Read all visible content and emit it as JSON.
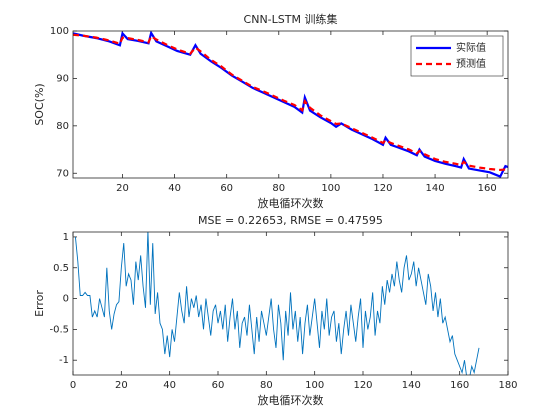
{
  "chart_data": [
    {
      "type": "line",
      "title": "CNN-LSTM 训练集",
      "xlabel": "放电循环次数",
      "ylabel": "SOC(%)",
      "xlim": [
        1,
        168
      ],
      "ylim": [
        69,
        100
      ],
      "xticks": [
        20,
        40,
        60,
        80,
        100,
        120,
        140,
        160
      ],
      "yticks": [
        70,
        80,
        90,
        100
      ],
      "legend": "upper right",
      "x": [
        1,
        5,
        10,
        15,
        19,
        20,
        22,
        26,
        30,
        31,
        33,
        37,
        41,
        46,
        48,
        50,
        54,
        58,
        62,
        66,
        70,
        74,
        78,
        82,
        86,
        89,
        90,
        92,
        96,
        100,
        102,
        104,
        108,
        112,
        116,
        120,
        121,
        123,
        126,
        130,
        133,
        134,
        136,
        140,
        144,
        148,
        150,
        151,
        153,
        157,
        161,
        165,
        167,
        168
      ],
      "series": [
        {
          "name": "实际值",
          "color": "#0000ff",
          "style": "solid",
          "values": [
            99.5,
            99,
            98.5,
            97.8,
            97,
            99.5,
            98.3,
            97.9,
            97.4,
            99.6,
            97.8,
            96.8,
            95.8,
            95,
            97,
            95.2,
            93.6,
            92.2,
            90.6,
            89.3,
            88,
            87,
            86,
            85,
            84,
            82.8,
            86,
            83.2,
            81.8,
            80.6,
            79.8,
            80.5,
            79.2,
            78.2,
            77.2,
            76,
            77.5,
            76,
            75.4,
            74.6,
            73.8,
            75,
            73.5,
            72.6,
            72,
            71.5,
            71.2,
            73,
            71,
            70.6,
            70.2,
            69.3,
            71.5,
            71.3
          ]
        },
        {
          "name": "预测值",
          "color": "#ff0000",
          "style": "dashed",
          "values": [
            99.2,
            99,
            98.6,
            98,
            97.3,
            98.6,
            98.5,
            98.1,
            97.6,
            98.9,
            98.2,
            97.1,
            96.1,
            95.2,
            96.5,
            95.7,
            93.9,
            92.5,
            90.8,
            89.5,
            88.2,
            87.3,
            86.3,
            85.3,
            84.4,
            83.3,
            85.2,
            83.8,
            82.2,
            81,
            80.4,
            80.5,
            79.5,
            78.5,
            77.5,
            76.4,
            77,
            76.4,
            75.8,
            75,
            74.2,
            74.7,
            74,
            73,
            72.4,
            72,
            71.7,
            72.4,
            71.6,
            71.2,
            70.9,
            70.7,
            70.8,
            71.2
          ]
        }
      ]
    },
    {
      "type": "line",
      "title": "MSE = 0.22653, RMSE = 0.47595",
      "xlabel": "放电循环次数",
      "ylabel": "Error",
      "xlim": [
        0,
        180
      ],
      "ylim": [
        -1.24,
        1.08
      ],
      "xticks": [
        0,
        20,
        40,
        60,
        80,
        100,
        120,
        140,
        160,
        180
      ],
      "yticks": [
        -1,
        -0.5,
        0,
        0.5,
        1
      ],
      "x": [
        1,
        2,
        3,
        4,
        5,
        6,
        7,
        8,
        9,
        10,
        11,
        12,
        13,
        14,
        15,
        16,
        17,
        18,
        19,
        20,
        21,
        22,
        23,
        24,
        25,
        26,
        27,
        28,
        29,
        30,
        31,
        32,
        33,
        34,
        35,
        36,
        37,
        38,
        39,
        40,
        41,
        42,
        43,
        44,
        45,
        46,
        47,
        48,
        49,
        50,
        51,
        52,
        53,
        54,
        55,
        56,
        57,
        58,
        59,
        60,
        61,
        62,
        63,
        64,
        65,
        66,
        67,
        68,
        69,
        70,
        71,
        72,
        73,
        74,
        75,
        76,
        77,
        78,
        79,
        80,
        81,
        82,
        83,
        84,
        85,
        86,
        87,
        88,
        89,
        90,
        91,
        92,
        93,
        94,
        95,
        96,
        97,
        98,
        99,
        100,
        101,
        102,
        103,
        104,
        105,
        106,
        107,
        108,
        109,
        110,
        111,
        112,
        113,
        114,
        115,
        116,
        117,
        118,
        119,
        120,
        121,
        122,
        123,
        124,
        125,
        126,
        127,
        128,
        129,
        130,
        131,
        132,
        133,
        134,
        135,
        136,
        137,
        138,
        139,
        140,
        141,
        142,
        143,
        144,
        145,
        146,
        147,
        148,
        149,
        150,
        151,
        152,
        153,
        154,
        155,
        156,
        157,
        158,
        159,
        160,
        161,
        162,
        163,
        164,
        165,
        166,
        167,
        168
      ],
      "series": [
        {
          "color": "#0072bd",
          "style": "solid",
          "values": [
            1.0,
            0.6,
            0.05,
            0.05,
            0.1,
            0.05,
            0.05,
            -0.3,
            -0.2,
            -0.3,
            0,
            -0.15,
            -0.3,
            0.5,
            -0.2,
            -0.5,
            -0.25,
            -0.1,
            -0.05,
            0.5,
            0.9,
            0.2,
            0.4,
            0.3,
            -0.1,
            0.6,
            0.3,
            0.7,
            0.2,
            -0.15,
            1.1,
            -0.1,
            0.9,
            -0.25,
            0.1,
            -0.4,
            -0.5,
            -0.9,
            -0.6,
            -0.95,
            -0.5,
            -0.7,
            -0.3,
            0.1,
            -0.2,
            -0.4,
            0.2,
            -0.3,
            0,
            -0.15,
            0.05,
            -0.3,
            -0.1,
            -0.5,
            0,
            -0.3,
            -0.6,
            -0.2,
            -0.1,
            -0.4,
            -0.2,
            -0.5,
            -0.1,
            -0.7,
            -0.3,
            0,
            -0.5,
            -0.2,
            -0.8,
            -0.4,
            -0.3,
            -0.6,
            -0.1,
            -0.5,
            -0.9,
            -0.3,
            -0.7,
            -0.2,
            -0.4,
            -0.6,
            -0.3,
            0,
            -0.5,
            -0.8,
            -0.1,
            -0.4,
            -1.0,
            -0.2,
            -0.6,
            0.1,
            -0.5,
            -0.2,
            -0.7,
            -0.3,
            -0.9,
            -0.4,
            -0.1,
            -0.6,
            -0.3,
            0,
            -0.4,
            -0.8,
            -0.2,
            -0.5,
            0,
            -0.6,
            -0.3,
            -0.2,
            -0.7,
            -0.4,
            -0.9,
            -0.5,
            -0.2,
            -0.6,
            -0.1,
            -0.4,
            -0.7,
            -0.3,
            0,
            -0.8,
            -0.2,
            -0.5,
            -0.3,
            0.1,
            -0.6,
            -0.2,
            -0.4,
            0.2,
            -0.1,
            0.3,
            0.1,
            0.4,
            0.2,
            0.6,
            0.3,
            0.1,
            0.5,
            0.7,
            0.3,
            0.4,
            0.6,
            0.2,
            0.5,
            0.3,
            0.1,
            -0.1,
            0.4,
            0.2,
            -0.2,
            0.1,
            -0.3,
            0,
            -0.4,
            -0.3,
            -0.5,
            -0.7,
            -0.6,
            -0.9,
            -1.0,
            -1.1,
            -1.2,
            -1.0,
            -1.3,
            -1.3,
            -1.1,
            -1.2,
            -1.0,
            -0.8
          ]
        }
      ]
    }
  ]
}
